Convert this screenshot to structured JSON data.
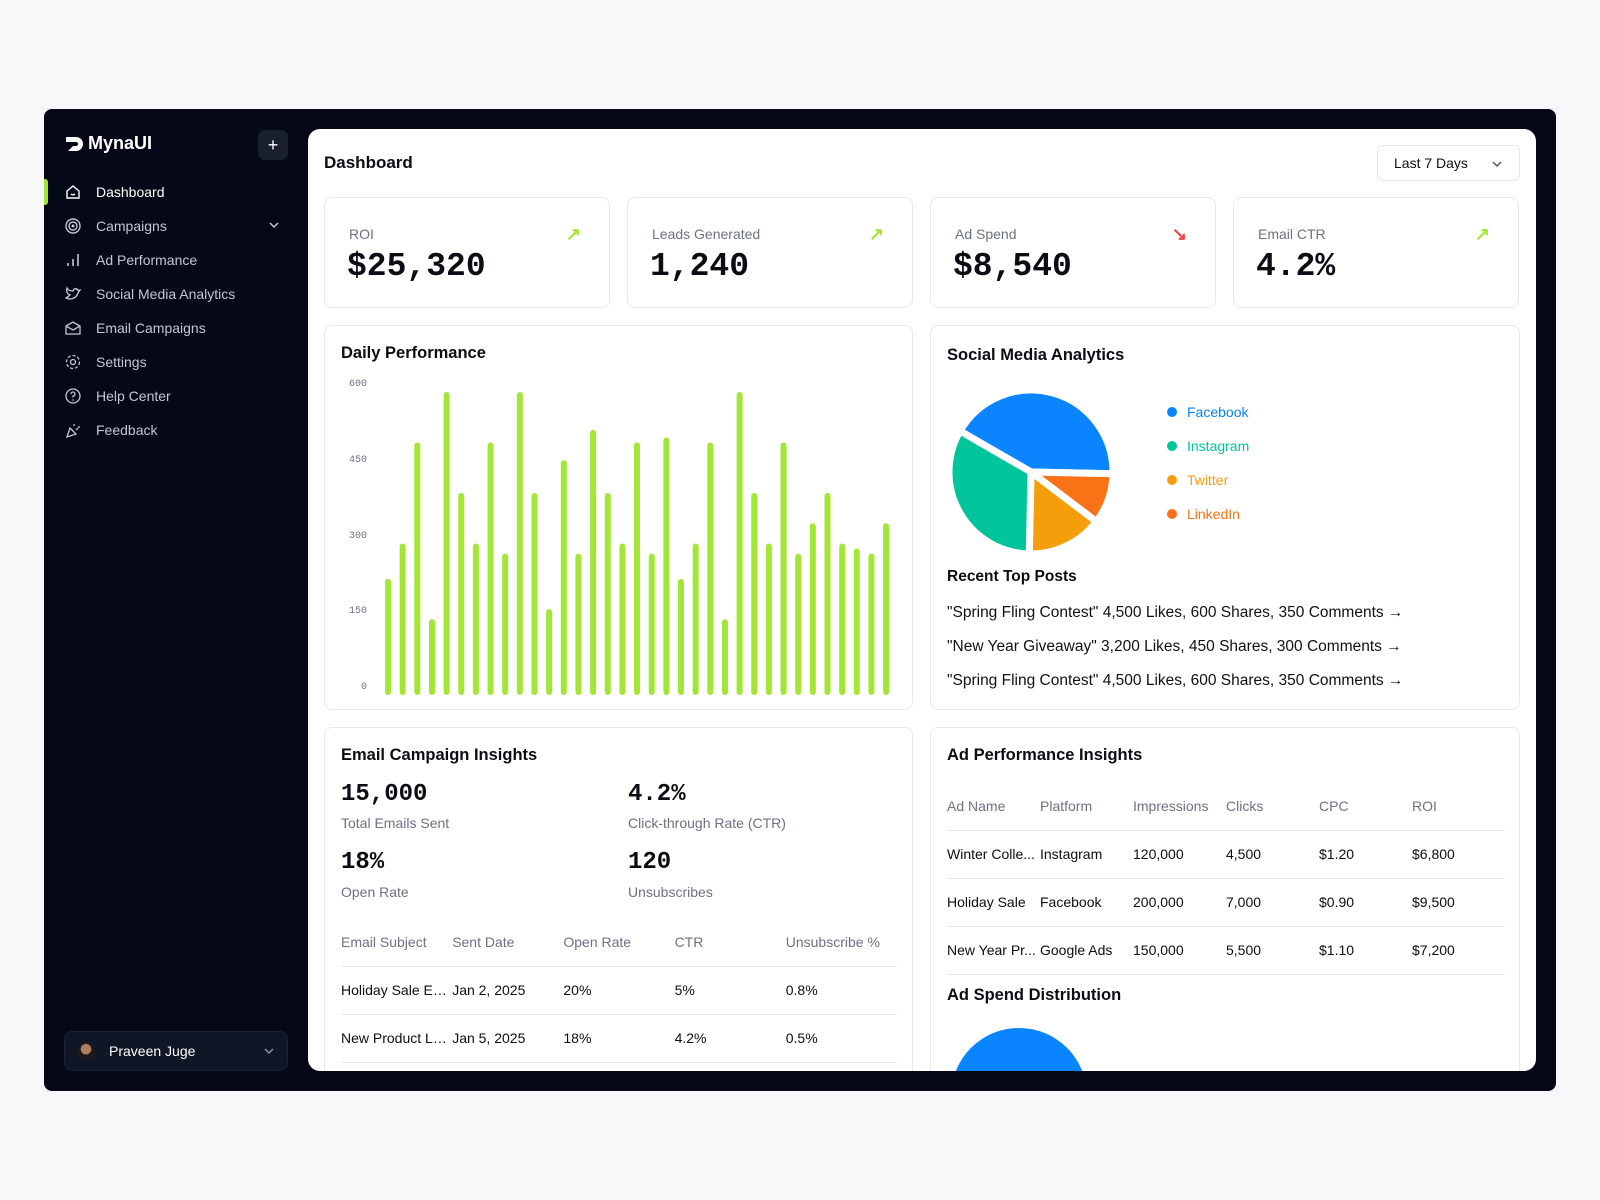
{
  "app": {
    "name": "MynaUI",
    "add_label": "+"
  },
  "sidebar": {
    "items": [
      {
        "label": "Dashboard",
        "icon": "home-icon",
        "active": true
      },
      {
        "label": "Campaigns",
        "icon": "target-icon",
        "expandable": true
      },
      {
        "label": "Ad Performance",
        "icon": "bar-chart-icon"
      },
      {
        "label": "Social Media Analytics",
        "icon": "twitter-bird-icon"
      },
      {
        "label": "Email Campaigns",
        "icon": "mail-open-icon"
      },
      {
        "label": "Settings",
        "icon": "gear-icon"
      },
      {
        "label": "Help Center",
        "icon": "help-circle-icon"
      },
      {
        "label": "Feedback",
        "icon": "party-popper-icon"
      }
    ],
    "user": {
      "name": "Praveen Juge"
    }
  },
  "header": {
    "title": "Dashboard",
    "range": "Last 7 Days"
  },
  "kpis": [
    {
      "label": "ROI",
      "value": "$25,320",
      "trend": "up"
    },
    {
      "label": "Leads Generated",
      "value": "1,240",
      "trend": "up"
    },
    {
      "label": "Ad Spend",
      "value": "$8,540",
      "trend": "down"
    },
    {
      "label": "Email CTR",
      "value": "4.2%",
      "trend": "up"
    }
  ],
  "colors": {
    "accent": "#a3e635",
    "up": "#a3e635",
    "down": "#ef4444",
    "sidebar_bg": "#050816"
  },
  "chart_data": [
    {
      "type": "bar",
      "title": "Daily Performance",
      "ylim": [
        0,
        600
      ],
      "yticks": [
        "600",
        "450",
        "300",
        "150",
        "0"
      ],
      "grid": false,
      "color": "#a3e635",
      "values": [
        230,
        300,
        500,
        150,
        600,
        400,
        300,
        500,
        280,
        600,
        400,
        170,
        465,
        280,
        525,
        400,
        300,
        500,
        280,
        510,
        230,
        300,
        500,
        150,
        600,
        400,
        300,
        500,
        280,
        340,
        400,
        300,
        290,
        280,
        340
      ]
    },
    {
      "type": "pie",
      "title": "Social Media Analytics",
      "legend": "right",
      "slices": [
        {
          "name": "Facebook",
          "value": 42,
          "color": "#0a84ff"
        },
        {
          "name": "Instagram",
          "value": 33,
          "color": "#00c49a"
        },
        {
          "name": "Twitter",
          "value": 15,
          "color": "#f59e0b"
        },
        {
          "name": "LinkedIn",
          "value": 10,
          "color": "#f97316"
        }
      ]
    }
  ],
  "social": {
    "posts_title": "Recent Top Posts",
    "posts": [
      "\"Spring Fling Contest\" 4,500 Likes, 600 Shares, 350 Comments →",
      "\"New Year Giveaway\" 3,200 Likes, 450 Shares, 300 Comments →",
      "\"Spring Fling Contest\" 4,500 Likes, 600 Shares, 350 Comments →"
    ]
  },
  "email": {
    "title": "Email Campaign Insights",
    "stats": [
      {
        "value": "15,000",
        "label": "Total Emails Sent"
      },
      {
        "value": "4.2%",
        "label": "Click-through Rate (CTR)"
      },
      {
        "value": "18%",
        "label": "Open Rate"
      },
      {
        "value": "120",
        "label": "Unsubscribes"
      }
    ],
    "columns": [
      "Email Subject",
      "Sent Date",
      "Open Rate",
      "CTR",
      "Unsubscribe %"
    ],
    "rows": [
      [
        "Holiday Sale En...",
        "Jan 2, 2025",
        "20%",
        "5%",
        "0.8%"
      ],
      [
        "New Product La...",
        "Jan 5, 2025",
        "18%",
        "4.2%",
        "0.5%"
      ]
    ]
  },
  "ads": {
    "title": "Ad Performance Insights",
    "columns": [
      "Ad Name",
      "Platform",
      "Impressions",
      "Clicks",
      "CPC",
      "ROI"
    ],
    "rows": [
      [
        "Winter Colle...",
        "Instagram",
        "120,000",
        "4,500",
        "$1.20",
        "$6,800"
      ],
      [
        "Holiday Sale",
        "Facebook",
        "200,000",
        "7,000",
        "$0.90",
        "$9,500"
      ],
      [
        "New Year Pr...",
        "Google Ads",
        "150,000",
        "5,500",
        "$1.10",
        "$7,200"
      ]
    ],
    "spend_title": "Ad Spend Distribution"
  }
}
